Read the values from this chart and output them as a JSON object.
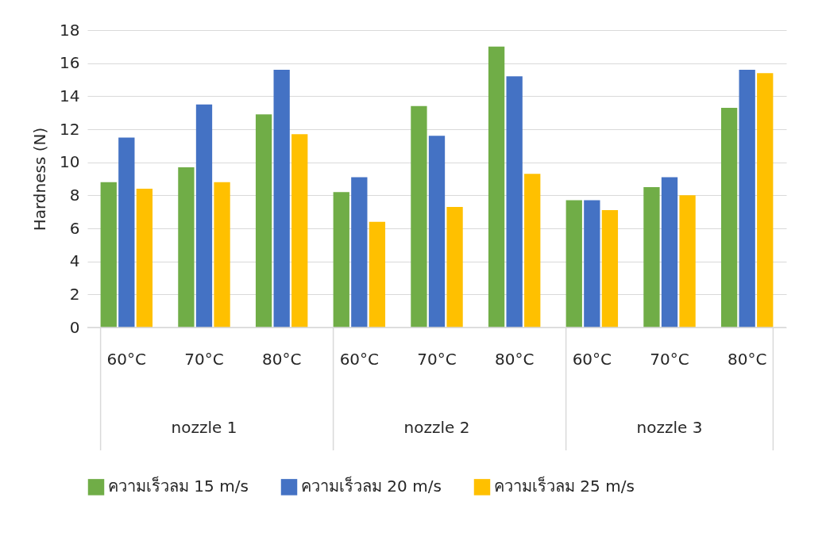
{
  "chart_data": {
    "type": "bar",
    "ylabel": "Hardness (N)",
    "categories": [
      "60°C",
      "70°C",
      "80°C",
      "60°C",
      "70°C",
      "80°C",
      "60°C",
      "70°C",
      "80°C"
    ],
    "annotations": [
      "nozzle 1",
      "nozzle 2",
      "nozzle 3"
    ],
    "series": [
      {
        "name": "ความเร็วลม 15 m/s",
        "color": "#70ad47",
        "values": [
          8.8,
          9.7,
          12.9,
          8.2,
          13.4,
          17.0,
          7.7,
          8.5,
          13.3
        ]
      },
      {
        "name": "ความเร็วลม 20 m/s",
        "color": "#4472c4",
        "values": [
          11.5,
          13.5,
          15.6,
          9.1,
          11.6,
          15.2,
          7.7,
          9.1,
          15.6
        ]
      },
      {
        "name": "ความเร็วลม 25 m/s",
        "color": "#ffc000",
        "values": [
          8.4,
          8.8,
          11.7,
          6.4,
          7.3,
          9.3,
          7.1,
          8.0,
          15.4
        ]
      }
    ],
    "ylim": [
      0,
      18
    ],
    "yticks": [
      0,
      2,
      4,
      6,
      8,
      10,
      12,
      14,
      16,
      18
    ],
    "grid": "y",
    "legend": "bottom"
  }
}
